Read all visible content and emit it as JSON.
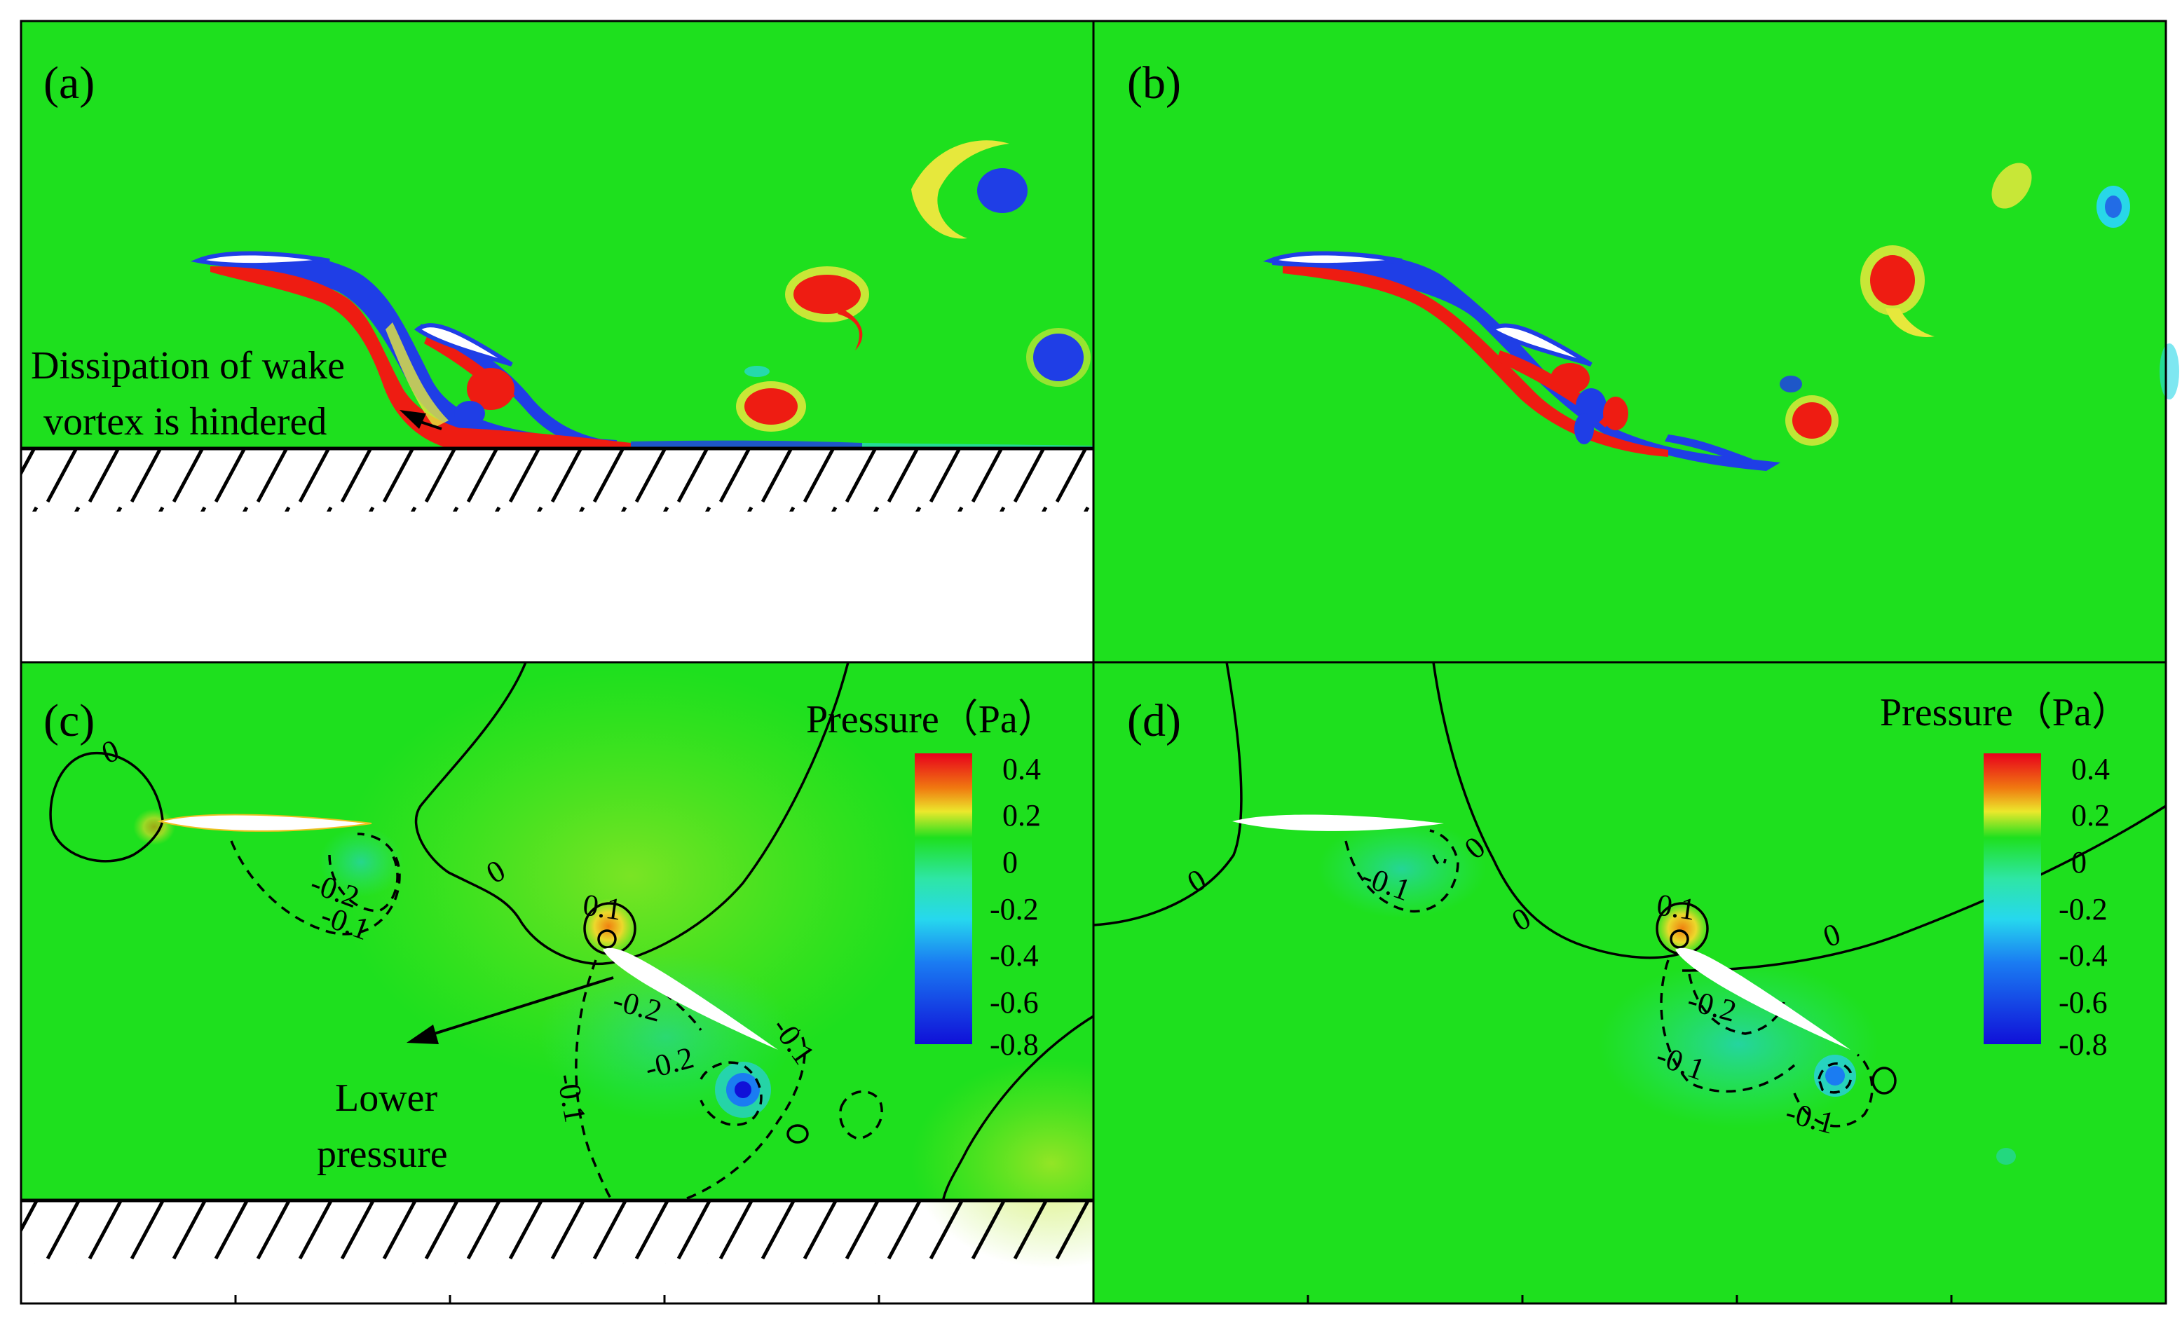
{
  "panels": {
    "a": {
      "label": "(a)"
    },
    "b": {
      "label": "(b)"
    },
    "c": {
      "label": "(c)"
    },
    "d": {
      "label": "(d)"
    }
  },
  "annotations": {
    "a_line1": "Dissipation of wake",
    "a_line2": "vortex is hindered",
    "c_line1": "Lower",
    "c_line2": "pressure"
  },
  "contour_labels": {
    "c": [
      "0",
      "-0.2",
      "-0.1",
      "0",
      "0.1",
      "-0.2",
      "-0.2",
      "-0.1",
      "-0.1"
    ],
    "d": [
      "0",
      "-0.1",
      "0",
      "0",
      "0.1",
      "0",
      "-0.2",
      "-0.1",
      "-0.1"
    ]
  },
  "colorbar": {
    "title": "Pressure（Pa）",
    "ticks": [
      "0.4",
      "0.2",
      "0",
      "-0.2",
      "-0.4",
      "-0.6",
      "-0.8"
    ]
  },
  "colors": {
    "field": "#1ee01e",
    "high": "#ee1c12",
    "low": "#1f3ee6"
  }
}
